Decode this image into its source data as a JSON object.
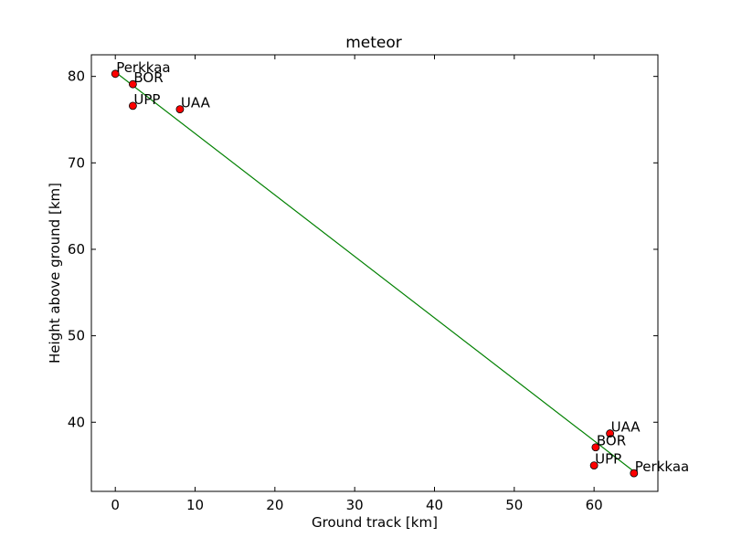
{
  "chart_data": {
    "type": "scatter",
    "title": "meteor",
    "xlabel": "Ground track [km]",
    "ylabel": "Height above ground [km]",
    "xlim": [
      -3,
      68
    ],
    "ylim": [
      32,
      82.5
    ],
    "xticks": [
      "0",
      "10",
      "20",
      "30",
      "40",
      "50",
      "60"
    ],
    "yticks": [
      "40",
      "50",
      "60",
      "70",
      "80"
    ],
    "grid": false,
    "fit_line": {
      "color": "#008000",
      "x": [
        0,
        65
      ],
      "y": [
        80.5,
        34.3
      ]
    },
    "marker_color": "#ff0000",
    "points": [
      {
        "label": "Perkkaa",
        "x": 0.0,
        "y": 80.3
      },
      {
        "label": "BOR",
        "x": 2.2,
        "y": 79.1
      },
      {
        "label": "UPP",
        "x": 2.2,
        "y": 76.6
      },
      {
        "label": "UAA",
        "x": 8.1,
        "y": 76.2
      },
      {
        "label": "UAA",
        "x": 62.0,
        "y": 38.7
      },
      {
        "label": "BOR",
        "x": 60.2,
        "y": 37.1
      },
      {
        "label": "UPP",
        "x": 60.0,
        "y": 35.0
      },
      {
        "label": "Perkkaa",
        "x": 65.0,
        "y": 34.1
      }
    ]
  }
}
